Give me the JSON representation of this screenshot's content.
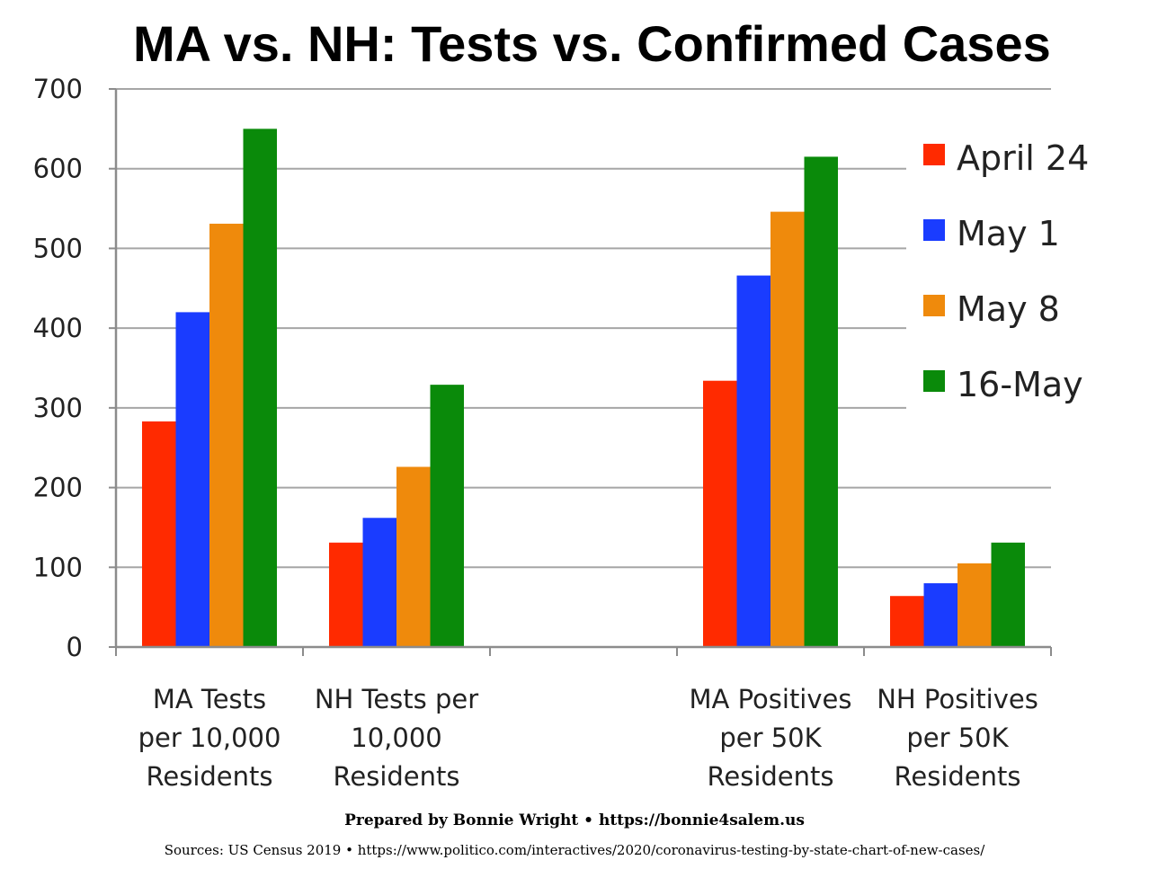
{
  "title": "MA vs. NH: Tests vs. Confirmed Cases",
  "credit": "Prepared by Bonnie Wright • https://bonnie4salem.us",
  "sources": "Sources: US Census 2019 • https://www.politico.com/interactives/2020/coronavirus-testing-by-state-chart-of-new-cases/",
  "chart_data": {
    "type": "bar",
    "title": "MA vs. NH: Tests vs. Confirmed Cases",
    "xlabel": "",
    "ylabel": "",
    "ylim": [
      0,
      700
    ],
    "yticks": [
      0,
      100,
      200,
      300,
      400,
      500,
      600,
      700
    ],
    "grid": true,
    "legend_position": "right",
    "categories": [
      [
        "MA Tests",
        "per 10,000",
        "Residents"
      ],
      [
        "NH Tests per",
        "10,000",
        "Residents"
      ],
      [],
      [
        "MA Positives",
        "per 50K",
        "Residents"
      ],
      [
        "NH Positives",
        "per 50K",
        "Residents"
      ]
    ],
    "series": [
      {
        "name": "April 24",
        "color": "#ff2a00",
        "values": [
          283,
          131,
          null,
          334,
          64
        ]
      },
      {
        "name": "May 1",
        "color": "#1a3cff",
        "values": [
          420,
          162,
          null,
          466,
          80
        ]
      },
      {
        "name": "May 8",
        "color": "#ef8a0c",
        "values": [
          531,
          226,
          null,
          546,
          105
        ]
      },
      {
        "name": "16-May",
        "color": "#0a8a0a",
        "values": [
          650,
          329,
          null,
          615,
          131
        ]
      }
    ]
  }
}
